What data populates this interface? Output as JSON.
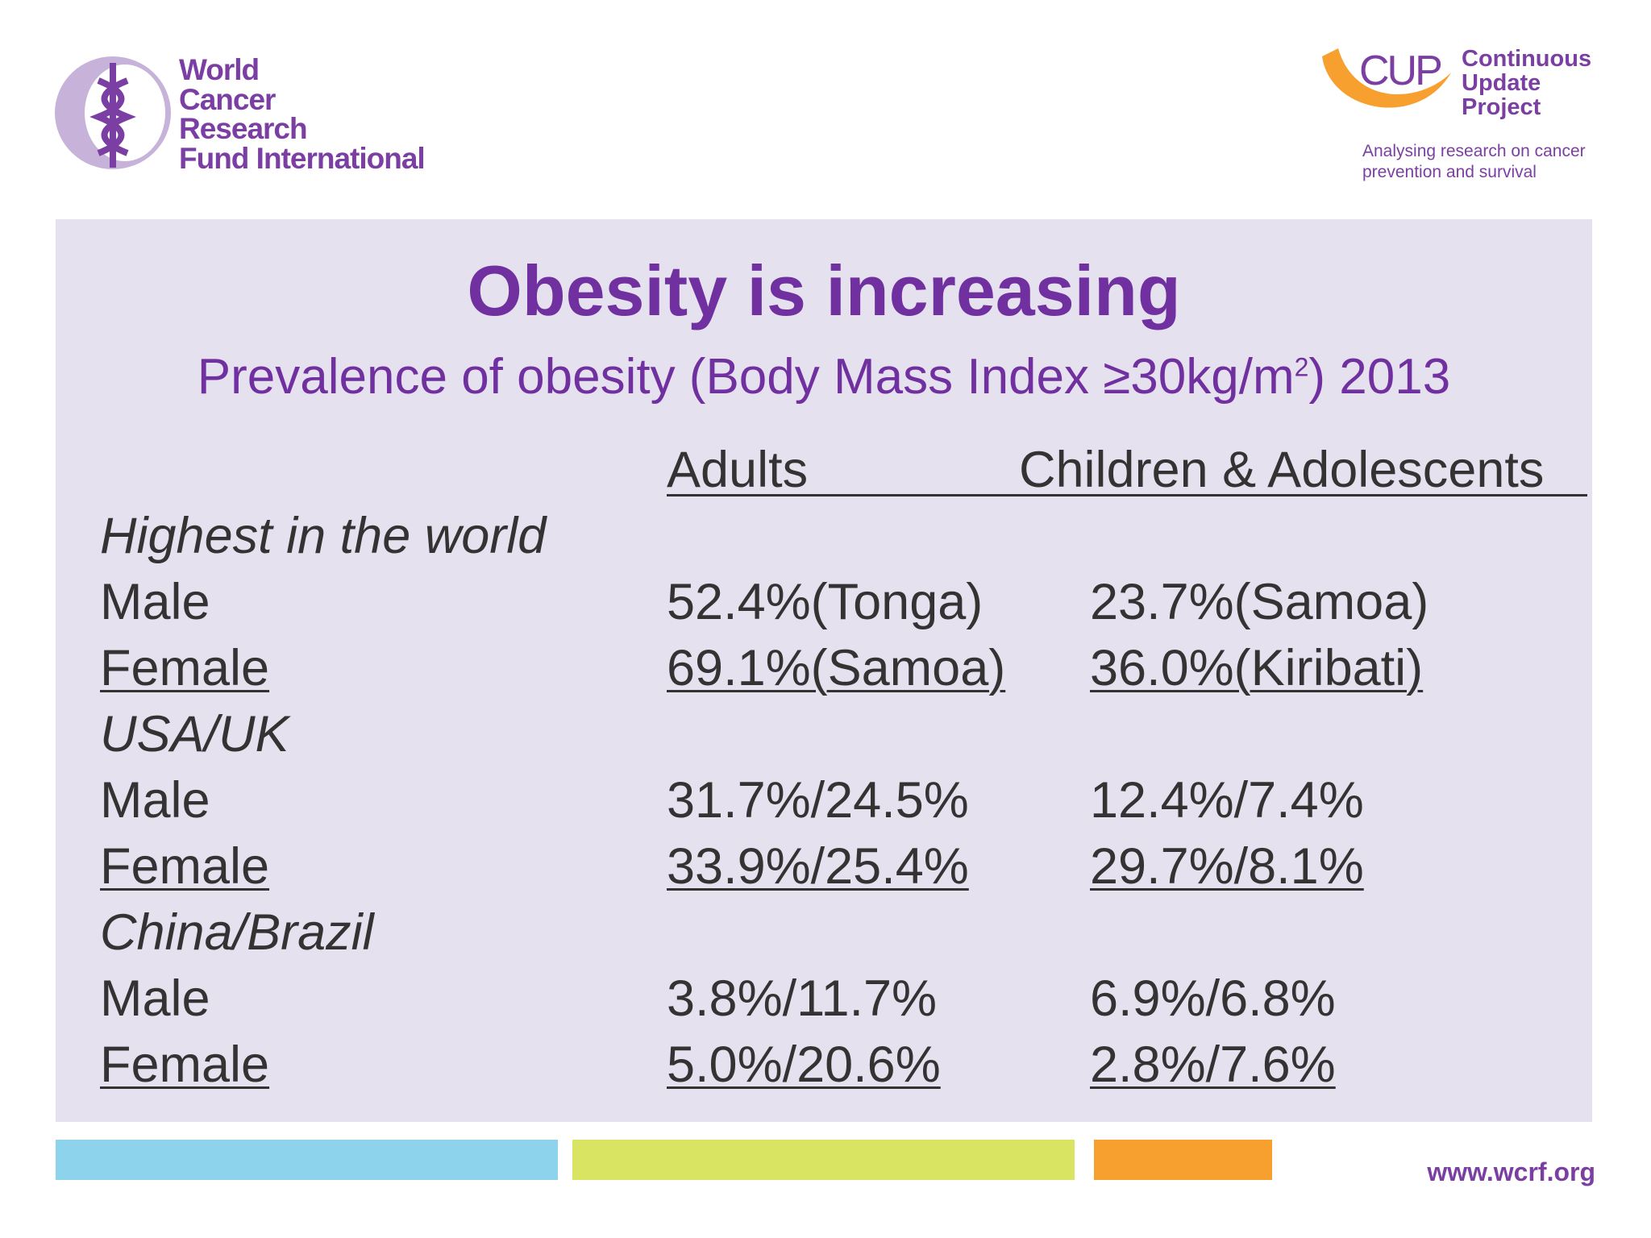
{
  "header": {
    "left_logo": [
      "World",
      "Cancer",
      "Research",
      "Fund International"
    ],
    "right_logo": {
      "mark": "CUP",
      "name": [
        "Continuous",
        "Update",
        "Project"
      ],
      "tagline": [
        "Analysing research on cancer",
        "prevention and survival"
      ]
    }
  },
  "title": "Obesity is increasing",
  "subtitle": {
    "before": "Prevalence of obesity (Body Mass Index ≥30kg/m",
    "sup": "2",
    "after": ") 2013"
  },
  "table": {
    "columns": [
      "Adults",
      "Children & Adolescents"
    ],
    "groups": [
      {
        "label": "Highest in the world",
        "rows": [
          {
            "label": "Male",
            "cells": [
              "52.4%(Tonga)",
              "23.7%(Samoa)"
            ]
          },
          {
            "label": "Female",
            "cells": [
              "69.1%(Samoa)",
              "36.0%(Kiribati)"
            ]
          }
        ]
      },
      {
        "label": "USA/UK",
        "rows": [
          {
            "label": "Male",
            "cells": [
              "31.7%/24.5%",
              "12.4%/7.4%"
            ]
          },
          {
            "label": "Female",
            "cells": [
              "33.9%/25.4%",
              "29.7%/8.1%"
            ]
          }
        ]
      },
      {
        "label": "China/Brazil",
        "rows": [
          {
            "label": "Male",
            "cells": [
              "3.8%/11.7%",
              "6.9%/6.8%"
            ]
          },
          {
            "label": "Female",
            "cells": [
              "5.0%/20.6%",
              "2.8%/7.6%"
            ]
          }
        ]
      }
    ]
  },
  "footer": {
    "url": "www.wcrf.org"
  }
}
